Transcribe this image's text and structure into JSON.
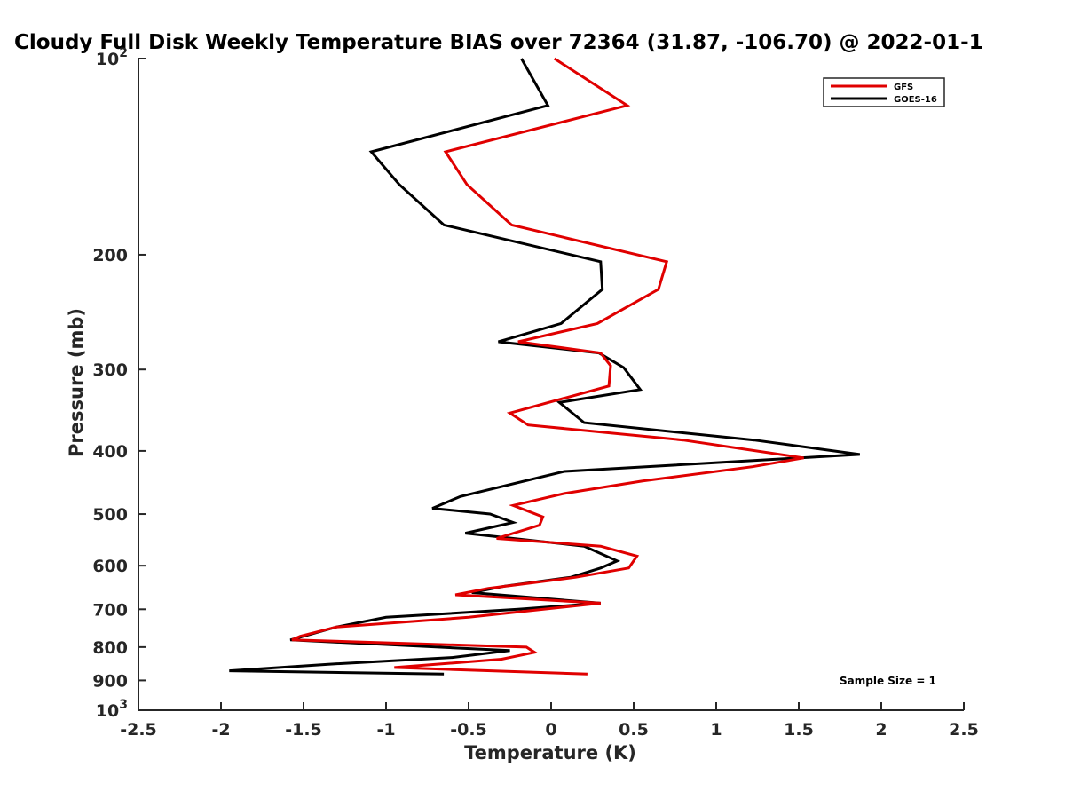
{
  "chart_data": {
    "type": "line",
    "title": "Cloudy Full Disk Weekly Temperature BIAS over 72364 (31.87, -106.70) @ 2022-01-1",
    "xlabel": "Temperature (K)",
    "ylabel": "Pressure (mb)",
    "xlim": [
      -2.5,
      2.5
    ],
    "ylim": [
      100,
      1000
    ],
    "yscale": "log",
    "y_reversed": true,
    "x_ticks": [
      "-2.5",
      "-2",
      "-1.5",
      "-1",
      "-0.5",
      "0",
      "0.5",
      "1",
      "1.5",
      "2",
      "2.5"
    ],
    "y_ticks": [
      {
        "value": 100,
        "base": "10",
        "exp": "2"
      },
      {
        "value": 200,
        "label": "200"
      },
      {
        "value": 300,
        "label": "300"
      },
      {
        "value": 400,
        "label": "400"
      },
      {
        "value": 500,
        "label": "500"
      },
      {
        "value": 600,
        "label": "600"
      },
      {
        "value": 700,
        "label": "700"
      },
      {
        "value": 800,
        "label": "800"
      },
      {
        "value": 900,
        "label": "900"
      },
      {
        "value": 1000,
        "base": "10",
        "exp": "3"
      }
    ],
    "grid": false,
    "legend_position": "top-right",
    "series": [
      {
        "name": "GFS",
        "color": "#e00000",
        "x": [
          0.02,
          0.46,
          -0.64,
          -0.51,
          -0.24,
          0.7,
          0.65,
          0.28,
          -0.2,
          0.3,
          0.36,
          0.35,
          -0.25,
          -0.14,
          0.8,
          1.53,
          1.22,
          0.55,
          0.08,
          -0.23,
          -0.05,
          -0.07,
          -0.33,
          0.3,
          0.52,
          0.47,
          0.15,
          -0.38,
          -0.58,
          0.3,
          -0.5,
          -1.3,
          -1.52,
          -1.57,
          -0.15,
          -0.1,
          -0.3,
          -0.95,
          0.22
        ],
        "y": [
          100,
          118,
          139,
          156,
          180,
          205,
          226,
          255,
          272,
          283,
          296,
          318,
          350,
          365,
          385,
          410,
          423,
          445,
          465,
          485,
          505,
          520,
          545,
          560,
          580,
          605,
          625,
          650,
          665,
          685,
          720,
          745,
          770,
          780,
          800,
          815,
          835,
          860,
          880
        ]
      },
      {
        "name": "GOES-16",
        "color": "#000000",
        "x": [
          -0.18,
          -0.02,
          -1.09,
          -0.92,
          -0.65,
          0.3,
          0.31,
          0.06,
          -0.32,
          0.29,
          0.44,
          0.54,
          0.05,
          0.2,
          1.23,
          1.87,
          0.08,
          -0.55,
          -0.72,
          -0.37,
          -0.23,
          -0.52,
          0.2,
          0.4,
          0.3,
          0.12,
          -0.28,
          -0.48,
          0.3,
          -0.2,
          -1.0,
          -1.3,
          -1.5,
          -1.58,
          -0.25,
          -0.6,
          -1.35,
          -1.95,
          -0.65
        ],
        "y": [
          100,
          118,
          139,
          156,
          180,
          205,
          226,
          255,
          272,
          283,
          298,
          322,
          337,
          362,
          385,
          405,
          430,
          470,
          490,
          500,
          515,
          535,
          560,
          590,
          605,
          625,
          645,
          660,
          685,
          700,
          720,
          745,
          770,
          780,
          810,
          830,
          850,
          870,
          880
        ]
      }
    ],
    "annotation": "Sample Size = 1"
  }
}
